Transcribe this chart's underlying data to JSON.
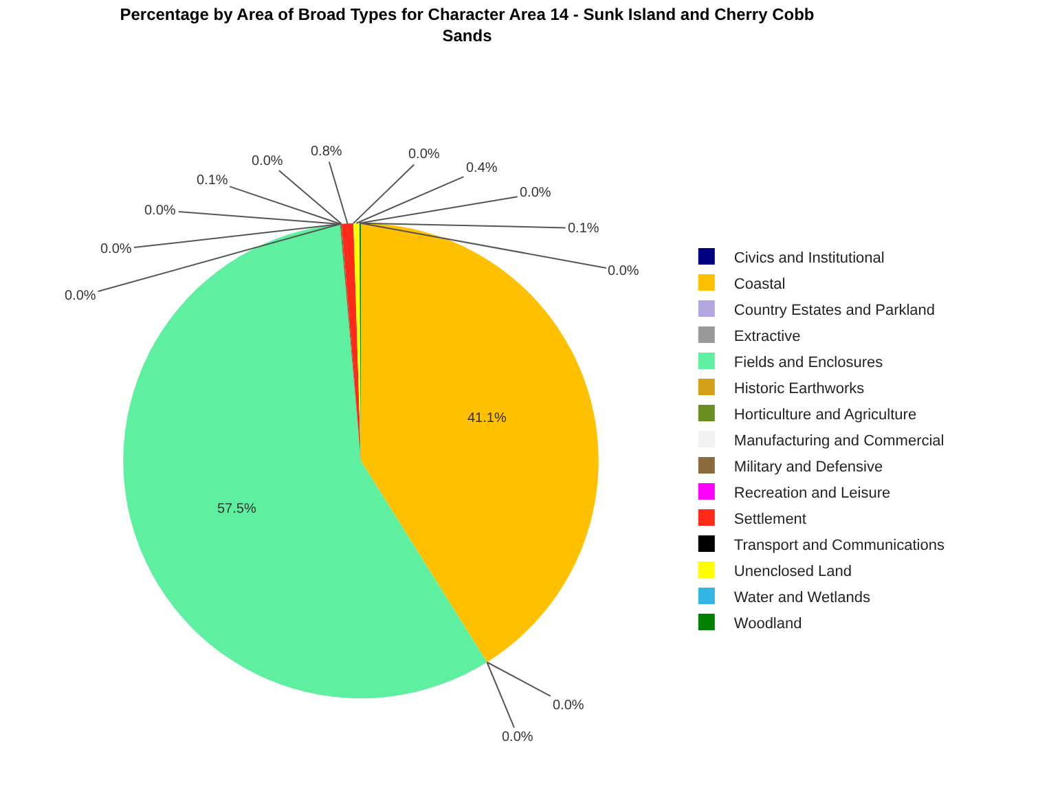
{
  "chart_data": {
    "type": "pie",
    "title": "Percentage by Area of Broad Types for Character Area 14 - Sunk Island and Cherry Cobb Sands",
    "categories": [
      "Civics and Institutional",
      "Coastal",
      "Country Estates and Parkland",
      "Extractive",
      "Fields and Enclosures",
      "Historic Earthworks",
      "Horticulture and Agriculture",
      "Manufacturing and Commercial",
      "Military and Defensive",
      "Recreation and Leisure",
      "Settlement",
      "Transport and Communications",
      "Unenclosed Land",
      "Water and Wetlands",
      "Woodland"
    ],
    "values": [
      0.0,
      41.1,
      0.0,
      0.0,
      57.5,
      0.0,
      0.0,
      0.0,
      0.1,
      0.0,
      0.8,
      0.0,
      0.4,
      0.0,
      0.1
    ],
    "value_labels": [
      "0.0%",
      "41.1%",
      "0.0%",
      "0.0%",
      "57.5%",
      "0.0%",
      "0.0%",
      "0.0%",
      "0.1%",
      "0.0%",
      "0.8%",
      "0.0%",
      "0.4%",
      "0.0%",
      "0.1%"
    ],
    "colors": [
      "#000080",
      "#ffc000",
      "#b4a7e0",
      "#999999",
      "#5ef0a0",
      "#d4a017",
      "#6b8e23",
      "#f2f2f2",
      "#8b6b3d",
      "#ff00ff",
      "#ff2a1a",
      "#000000",
      "#ffff00",
      "#33b5e5",
      "#008000"
    ],
    "legend": "right"
  }
}
